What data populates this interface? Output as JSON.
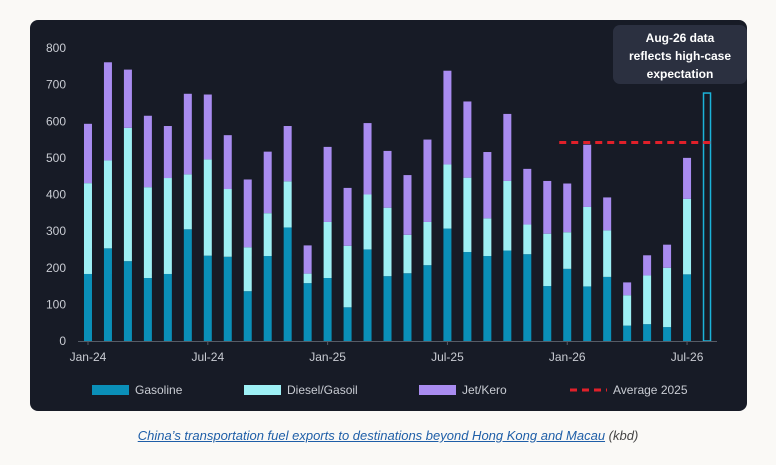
{
  "chart_data": {
    "type": "bar",
    "stacked": true,
    "categories": [
      "Jan-24",
      "Feb-24",
      "Mar-24",
      "Apr-24",
      "May-24",
      "Jun-24",
      "Jul-24",
      "Aug-24",
      "Sep-24",
      "Oct-24",
      "Nov-24",
      "Dec-24",
      "Jan-25",
      "Feb-25",
      "Mar-25",
      "Apr-25",
      "May-25",
      "Jun-25",
      "Jul-25",
      "Aug-25",
      "Sep-25",
      "Oct-25",
      "Nov-25",
      "Dec-25",
      "Jan-26",
      "Feb-26",
      "Mar-26",
      "Apr-26",
      "May-26",
      "Jun-26",
      "Jul-26",
      "Aug-26"
    ],
    "x_tick_labels": [
      {
        "index": 0,
        "label": "Jan-24"
      },
      {
        "index": 6,
        "label": "Jul-24"
      },
      {
        "index": 12,
        "label": "Jan-25"
      },
      {
        "index": 18,
        "label": "Jul-25"
      },
      {
        "index": 24,
        "label": "Jan-26"
      },
      {
        "index": 30,
        "label": "Jul-26"
      }
    ],
    "series": [
      {
        "name": "Gasoline",
        "color": "#0a8fb8",
        "values": [
          183,
          253,
          218,
          172,
          183,
          305,
          233,
          230,
          136,
          232,
          310,
          158,
          172,
          92,
          250,
          177,
          185,
          207,
          307,
          243,
          232,
          247,
          237,
          150,
          197,
          149,
          175,
          42,
          46,
          38,
          182,
          null
        ]
      },
      {
        "name": "Diesel/Gasoil",
        "color": "#9ef0f5",
        "values": [
          248,
          240,
          364,
          248,
          262,
          150,
          263,
          185,
          120,
          117,
          126,
          26,
          153,
          168,
          150,
          187,
          105,
          118,
          175,
          203,
          103,
          190,
          81,
          143,
          100,
          217,
          127,
          83,
          133,
          162,
          206,
          null
        ]
      },
      {
        "name": "Jet/Kero",
        "color": "#a98cf0",
        "values": [
          162,
          268,
          159,
          195,
          142,
          220,
          177,
          147,
          185,
          168,
          151,
          77,
          205,
          158,
          195,
          155,
          163,
          225,
          256,
          208,
          181,
          183,
          152,
          144,
          133,
          170,
          90,
          35,
          55,
          63,
          112,
          null
        ]
      }
    ],
    "highlighted_total": {
      "category": "Aug-26",
      "value": 677,
      "color": "#1cb3d9"
    },
    "reference_line": {
      "name": "Average 2025",
      "value": 542,
      "color": "#e0202a",
      "style": "dashed",
      "from_category": "Jan-26",
      "to_category": "Aug-26"
    },
    "annotation": {
      "lines": [
        "Aug-26 data",
        "reflects high-case",
        "expectation"
      ]
    },
    "y_ticks": [
      0,
      100,
      200,
      300,
      400,
      500,
      600,
      700,
      800
    ],
    "ylim": [
      0,
      800
    ],
    "legend": {
      "placement": "bottom",
      "items": [
        "Gasoline",
        "Diesel/Gasoil",
        "Jet/Kero",
        "Average 2025"
      ]
    },
    "grid": false
  },
  "caption": {
    "link_text": " China’s transportation fuel exports to destinations beyond Hong Kong and Macau",
    "unit_text": " (kbd)"
  },
  "colors": {
    "background": "#171b26",
    "axis_text": "#c9ccd3",
    "annotation_box": "#2b3040"
  }
}
